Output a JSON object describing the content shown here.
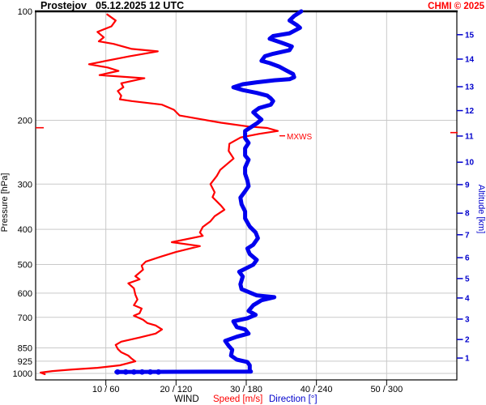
{
  "header": {
    "station": "Prostejov",
    "datetime": "05.12.2025 12 UTC",
    "copyright": "CHMI © 2025"
  },
  "axes": {
    "left_title": "Pressure [hPa]",
    "right_title": "Altitude [km]",
    "legend": {
      "wind": "WIND",
      "speed": "Speed [m/s]",
      "direction": "Direction [°]"
    },
    "pressure_ticks": [
      100,
      200,
      300,
      400,
      500,
      600,
      700,
      850,
      925,
      1000
    ],
    "altitude_ticks": [
      {
        "km": 15,
        "p": 116
      },
      {
        "km": 14,
        "p": 135.5
      },
      {
        "km": 13,
        "p": 161.5
      },
      {
        "km": 12,
        "p": 188
      },
      {
        "km": 11,
        "p": 221
      },
      {
        "km": 10,
        "p": 261
      },
      {
        "km": 9,
        "p": 301
      },
      {
        "km": 8,
        "p": 361
      },
      {
        "km": 7,
        "p": 414
      },
      {
        "km": 6,
        "p": 479
      },
      {
        "km": 5,
        "p": 547
      },
      {
        "km": 4,
        "p": 619
      },
      {
        "km": 3,
        "p": 708
      },
      {
        "km": 2,
        "p": 806
      },
      {
        "km": 1,
        "p": 907
      }
    ],
    "x_ticks": [
      {
        "speed": 10,
        "label": "10 / 60"
      },
      {
        "speed": 20,
        "label": "20 / 120"
      },
      {
        "speed": 30,
        "label": "30 / 180"
      },
      {
        "speed": 40,
        "label": "40 / 240"
      },
      {
        "speed": 50,
        "label": "50 / 300"
      }
    ]
  },
  "annotations": {
    "mxws_label": "MXWS",
    "mxws_pressure": 214,
    "mxws_speed": 34.5,
    "surface_dots": {
      "pressure": 991,
      "directions": [
        70,
        77,
        84,
        91,
        98,
        105
      ]
    }
  },
  "colors": {
    "speed": "#ff0000",
    "direction": "#0000ee",
    "blue_text": "#0000cc",
    "grid": "#c9c9c9",
    "axis": "#000000"
  },
  "chart_data": {
    "type": "line",
    "title": "Prostejov 05.12.2025 12 UTC vertical wind profile",
    "xlabel": "WIND Speed [m/s] / Direction [°]",
    "ylabel": "Pressure [hPa]",
    "y_scale": "log",
    "y_range": [
      100,
      1050
    ],
    "x_range_speed": [
      0,
      60
    ],
    "x_range_direction": [
      0,
      360
    ],
    "grid": true,
    "mxws": {
      "pressure": 214,
      "speed": 34.5
    },
    "series": [
      {
        "name": "Speed [m/s]",
        "units": "m/s",
        "points_p_v": [
          [
            102,
            10.2
          ],
          [
            106,
            11.4
          ],
          [
            110,
            10.8
          ],
          [
            114,
            8.8
          ],
          [
            118,
            9.7
          ],
          [
            121,
            9.0
          ],
          [
            123,
            11.1
          ],
          [
            127,
            13.7
          ],
          [
            129,
            17.4
          ],
          [
            133,
            13.4
          ],
          [
            140,
            7.6
          ],
          [
            143,
            10.3
          ],
          [
            146,
            11.8
          ],
          [
            150,
            9.1
          ],
          [
            153,
            15.5
          ],
          [
            158,
            12.2
          ],
          [
            162,
            12.5
          ],
          [
            166,
            11.7
          ],
          [
            171,
            12.2
          ],
          [
            175,
            12.0
          ],
          [
            177,
            13.7
          ],
          [
            181,
            18.0
          ],
          [
            187,
            19.7
          ],
          [
            194,
            20.5
          ],
          [
            199,
            23.8
          ],
          [
            203,
            26.4
          ],
          [
            208,
            30.3
          ],
          [
            210,
            33.0
          ],
          [
            214,
            34.5
          ],
          [
            218,
            31.8
          ],
          [
            223,
            29.2
          ],
          [
            232,
            27.6
          ],
          [
            243,
            27.5
          ],
          [
            255,
            28.2
          ],
          [
            274,
            26.3
          ],
          [
            285,
            25.8
          ],
          [
            300,
            24.9
          ],
          [
            316,
            25.5
          ],
          [
            326,
            25.2
          ],
          [
            344,
            26.4
          ],
          [
            353,
            26.9
          ],
          [
            368,
            25.5
          ],
          [
            380,
            24.9
          ],
          [
            394,
            23.8
          ],
          [
            408,
            23.4
          ],
          [
            417,
            23.8
          ],
          [
            434,
            19.4
          ],
          [
            445,
            23.4
          ],
          [
            462,
            20.0
          ],
          [
            476,
            17.8
          ],
          [
            491,
            15.7
          ],
          [
            504,
            15.1
          ],
          [
            517,
            15.3
          ],
          [
            539,
            14.2
          ],
          [
            550,
            14.8
          ],
          [
            564,
            13.2
          ],
          [
            582,
            14.0
          ],
          [
            606,
            14.2
          ],
          [
            625,
            14.5
          ],
          [
            648,
            14.0
          ],
          [
            662,
            15.1
          ],
          [
            682,
            14.8
          ],
          [
            693,
            14.0
          ],
          [
            711,
            15.3
          ],
          [
            726,
            15.9
          ],
          [
            737,
            17.1
          ],
          [
            756,
            18.0
          ],
          [
            776,
            17.1
          ],
          [
            796,
            14.8
          ],
          [
            817,
            12.2
          ],
          [
            834,
            11.4
          ],
          [
            856,
            11.7
          ],
          [
            874,
            12.2
          ],
          [
            893,
            13.2
          ],
          [
            911,
            13.7
          ],
          [
            926,
            14.2
          ],
          [
            950,
            12.0
          ],
          [
            965,
            8.8
          ],
          [
            975,
            5.3
          ],
          [
            985,
            2.4
          ],
          [
            995,
            0.7
          ],
          [
            1005,
            1.3
          ]
        ]
      },
      {
        "name": "Direction [°]",
        "units": "deg",
        "points_p_deg": [
          [
            100,
            227
          ],
          [
            103,
            221
          ],
          [
            106,
            217
          ],
          [
            109,
            223
          ],
          [
            111,
            226
          ],
          [
            115,
            217
          ],
          [
            117,
            203
          ],
          [
            119,
            200
          ],
          [
            122,
            210
          ],
          [
            125,
            219
          ],
          [
            128,
            217
          ],
          [
            131,
            203
          ],
          [
            133,
            196
          ],
          [
            137,
            193
          ],
          [
            139,
            200
          ],
          [
            142,
            208
          ],
          [
            145,
            213
          ],
          [
            149,
            220
          ],
          [
            152,
            221
          ],
          [
            154,
            217
          ],
          [
            155,
            204
          ],
          [
            157,
            189
          ],
          [
            159,
            177
          ],
          [
            162,
            169
          ],
          [
            165,
            177
          ],
          [
            168,
            189
          ],
          [
            171,
            198
          ],
          [
            174,
            201
          ],
          [
            177,
            203
          ],
          [
            181,
            201
          ],
          [
            185,
            191
          ],
          [
            190,
            186
          ],
          [
            194,
            189
          ],
          [
            199,
            193
          ],
          [
            204,
            189
          ],
          [
            214,
            179
          ],
          [
            224,
            179
          ],
          [
            231,
            182
          ],
          [
            239,
            179
          ],
          [
            250,
            179
          ],
          [
            257,
            182
          ],
          [
            270,
            179
          ],
          [
            281,
            179
          ],
          [
            293,
            181
          ],
          [
            304,
            182
          ],
          [
            314,
            179
          ],
          [
            327,
            175
          ],
          [
            341,
            176
          ],
          [
            357,
            179
          ],
          [
            373,
            179
          ],
          [
            393,
            183
          ],
          [
            408,
            188
          ],
          [
            423,
            190
          ],
          [
            441,
            186
          ],
          [
            452,
            181
          ],
          [
            468,
            183
          ],
          [
            486,
            189
          ],
          [
            501,
            186
          ],
          [
            524,
            174
          ],
          [
            540,
            177
          ],
          [
            567,
            175
          ],
          [
            585,
            176
          ],
          [
            609,
            189
          ],
          [
            616,
            204
          ],
          [
            628,
            193
          ],
          [
            648,
            186
          ],
          [
            672,
            182
          ],
          [
            689,
            188
          ],
          [
            704,
            181
          ],
          [
            718,
            169
          ],
          [
            745,
            172
          ],
          [
            756,
            179
          ],
          [
            776,
            182
          ],
          [
            792,
            172
          ],
          [
            813,
            162
          ],
          [
            839,
            165
          ],
          [
            861,
            168
          ],
          [
            893,
            167
          ],
          [
            916,
            172
          ],
          [
            930,
            181
          ],
          [
            950,
            183
          ],
          [
            980,
            183
          ],
          [
            988,
            184
          ],
          [
            991,
            69
          ]
        ]
      }
    ]
  }
}
